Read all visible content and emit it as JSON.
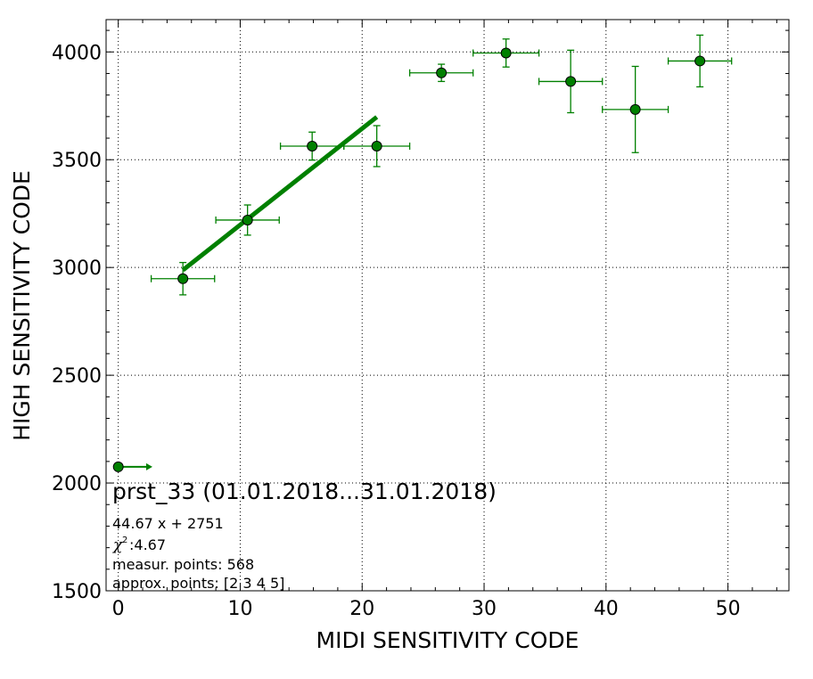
{
  "chart_data": {
    "type": "scatter",
    "xlabel": "MIDI SENSITIVITY CODE",
    "ylabel": "HIGH SENSITIVITY CODE",
    "xlim": [
      -1,
      55
    ],
    "ylim": [
      1500,
      4150
    ],
    "x_ticks": [
      0,
      10,
      20,
      30,
      40,
      50
    ],
    "y_ticks": [
      1500,
      2000,
      2500,
      3000,
      3500,
      4000
    ],
    "grid": true,
    "series": [
      {
        "marker": "circle",
        "color": "#008000",
        "points": [
          {
            "x": 5.3,
            "y": 2948,
            "xerr": 2.6,
            "yerr": 75
          },
          {
            "x": 10.6,
            "y": 3220,
            "xerr": 2.6,
            "yerr": 70
          },
          {
            "x": 15.9,
            "y": 3563,
            "xerr": 2.6,
            "yerr": 65
          },
          {
            "x": 21.2,
            "y": 3563,
            "xerr": 2.7,
            "yerr": 95
          },
          {
            "x": 26.5,
            "y": 3903,
            "xerr": 2.6,
            "yerr": 40
          },
          {
            "x": 31.8,
            "y": 3995,
            "xerr": 2.7,
            "yerr": 65
          },
          {
            "x": 37.1,
            "y": 3863,
            "xerr": 2.6,
            "yerr": 145
          },
          {
            "x": 42.4,
            "y": 3733,
            "xerr": 2.7,
            "yerr": 200
          },
          {
            "x": 47.7,
            "y": 3958,
            "xerr": 2.6,
            "yerr": 120
          }
        ]
      }
    ],
    "fit_line": {
      "slope": 44.67,
      "intercept": 2751,
      "x_range": [
        5.3,
        21.2
      ],
      "color": "#008000"
    },
    "arrow_marker": {
      "x": 0,
      "y": 2075,
      "x_end": 2.8,
      "color": "#008000"
    },
    "annotation": {
      "title": "prst_33 (01.01.2018...31.01.2018)",
      "fit_equation": "44.67 x + 2751",
      "chi_symbol": "χ",
      "chi_exponent": "2",
      "chi_value": " :4.67",
      "measured_points": "measur. points: 568",
      "approx_points": "approx. points: [2 3 4 5]"
    }
  }
}
